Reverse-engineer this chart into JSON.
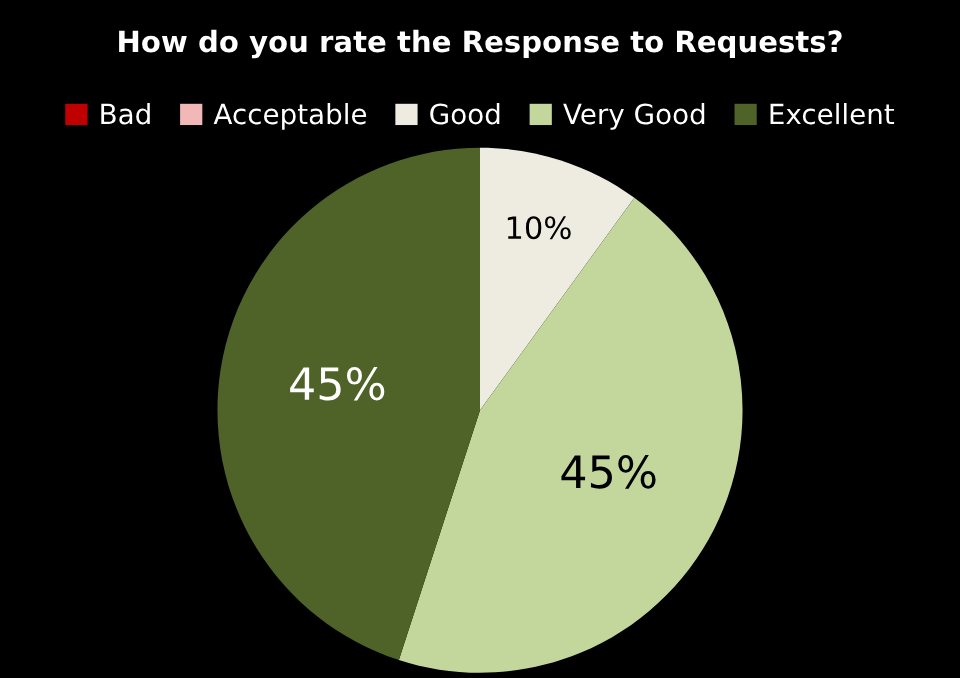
{
  "chart_data": {
    "type": "pie",
    "title": "How do you rate the Response to Requests?",
    "categories": [
      "Bad",
      "Acceptable",
      "Good",
      "Very Good",
      "Excellent"
    ],
    "values": [
      0,
      0,
      10,
      45,
      45
    ],
    "colors": [
      "#c00000",
      "#f2b8b8",
      "#eeece1",
      "#c3d69b",
      "#4f6228"
    ],
    "value_labels": [
      null,
      null,
      "10%",
      "45%",
      "45%"
    ],
    "legend": "top"
  }
}
